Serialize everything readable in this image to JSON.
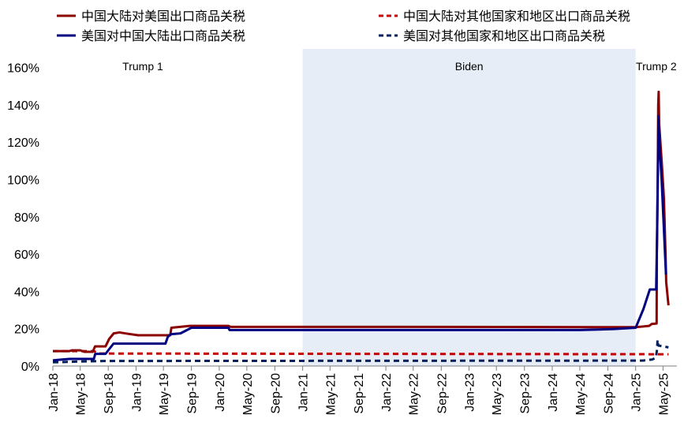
{
  "chart_data": {
    "type": "line",
    "title": "",
    "xlabel": "",
    "ylabel": "",
    "ylim": [
      0,
      170
    ],
    "y_ticks": [
      0,
      20,
      40,
      60,
      80,
      100,
      120,
      140,
      160
    ],
    "y_tick_labels": [
      "0%",
      "20%",
      "40%",
      "60%",
      "80%",
      "100%",
      "120%",
      "140%",
      "160%"
    ],
    "x_range": [
      "2018-01",
      "2025-07"
    ],
    "x_tick_labels": [
      "Jan-18",
      "May-18",
      "Sep-18",
      "Jan-19",
      "May-19",
      "Sep-19",
      "Jan-20",
      "May-20",
      "Sep-20",
      "Jan-21",
      "May-21",
      "Sep-21",
      "Jan-22",
      "May-22",
      "Sep-22",
      "Jan-23",
      "May-23",
      "Sep-23",
      "Jan-24",
      "May-24",
      "Sep-24",
      "Jan-25",
      "May-25"
    ],
    "x_ticks": [
      "2018-01",
      "2018-05",
      "2018-09",
      "2019-01",
      "2019-05",
      "2019-09",
      "2020-01",
      "2020-05",
      "2020-09",
      "2021-01",
      "2021-05",
      "2021-09",
      "2022-01",
      "2022-05",
      "2022-09",
      "2023-01",
      "2023-05",
      "2023-09",
      "2024-01",
      "2024-05",
      "2024-09",
      "2025-01",
      "2025-05"
    ],
    "grid": false,
    "legend_position": "top",
    "periods": [
      {
        "label": "Trump 1",
        "start": "2018-01",
        "end": "2021-01",
        "shaded": false
      },
      {
        "label": "Biden",
        "start": "2021-01",
        "end": "2025-01",
        "shaded": true,
        "color": "#e6edf6"
      },
      {
        "label": "Trump 2",
        "start": "2025-01",
        "end": "2025-07",
        "shaded": false
      }
    ],
    "series": [
      {
        "name": "中国大陆对美国出口商品关税",
        "color": "#8b0000",
        "dash": "solid",
        "points": [
          [
            "2018-01-01",
            8.0
          ],
          [
            "2018-03-15",
            8.0
          ],
          [
            "2018-03-25",
            8.4
          ],
          [
            "2018-05-01",
            8.4
          ],
          [
            "2018-05-20",
            7.6
          ],
          [
            "2018-06-25",
            7.6
          ],
          [
            "2018-07-05",
            10.5
          ],
          [
            "2018-08-20",
            10.5
          ],
          [
            "2018-09-05",
            14.5
          ],
          [
            "2018-09-25",
            17.5
          ],
          [
            "2018-10-20",
            18.0
          ],
          [
            "2018-11-30",
            17.2
          ],
          [
            "2019-01-10",
            16.5
          ],
          [
            "2019-05-31",
            16.5
          ],
          [
            "2019-06-05",
            20.5
          ],
          [
            "2019-08-25",
            21.5
          ],
          [
            "2020-02-10",
            21.5
          ],
          [
            "2020-02-20",
            21.0
          ],
          [
            "2022-01-01",
            21.0
          ],
          [
            "2025-01-01",
            20.8
          ],
          [
            "2025-03-01",
            21.5
          ],
          [
            "2025-03-12",
            22.5
          ],
          [
            "2025-04-03",
            22.8
          ],
          [
            "2025-04-04",
            60.0
          ],
          [
            "2025-04-08",
            100.0
          ],
          [
            "2025-04-10",
            140.0
          ],
          [
            "2025-04-12",
            147.0
          ],
          [
            "2025-04-14",
            130.0
          ],
          [
            "2025-04-25",
            110.0
          ],
          [
            "2025-05-05",
            90.0
          ],
          [
            "2025-05-12",
            60.0
          ],
          [
            "2025-05-15",
            45.0
          ],
          [
            "2025-05-25",
            32.5
          ]
        ]
      },
      {
        "name": "中国大陆对其他国家和地区出口商品关税",
        "color": "#c00000",
        "dash": "dashed",
        "points": [
          [
            "2018-01-01",
            8.0
          ],
          [
            "2018-07-01",
            8.0
          ],
          [
            "2018-07-15",
            6.7
          ],
          [
            "2025-05-25",
            6.3
          ]
        ]
      },
      {
        "name": "美国对中国大陆出口商品关税",
        "color": "#000080",
        "dash": "solid",
        "points": [
          [
            "2018-01-01",
            3.0
          ],
          [
            "2018-02-01",
            3.4
          ],
          [
            "2018-03-15",
            3.8
          ],
          [
            "2018-06-30",
            3.8
          ],
          [
            "2018-07-06",
            6.5
          ],
          [
            "2018-08-20",
            6.5
          ],
          [
            "2018-09-24",
            12.0
          ],
          [
            "2019-05-10",
            12.0
          ],
          [
            "2019-05-20",
            15.5
          ],
          [
            "2019-06-01",
            17.0
          ],
          [
            "2019-07-15",
            17.5
          ],
          [
            "2019-09-01",
            20.5
          ],
          [
            "2020-02-10",
            20.5
          ],
          [
            "2020-02-15",
            19.3
          ],
          [
            "2024-05-01",
            19.3
          ],
          [
            "2024-09-27",
            19.8
          ],
          [
            "2025-01-01",
            20.5
          ],
          [
            "2025-02-04",
            30.5
          ],
          [
            "2025-03-04",
            41.0
          ],
          [
            "2025-04-01",
            41.0
          ],
          [
            "2025-04-05",
            70.0
          ],
          [
            "2025-04-09",
            110.0
          ],
          [
            "2025-04-11",
            134.0
          ],
          [
            "2025-04-15",
            120.0
          ],
          [
            "2025-04-25",
            100.0
          ],
          [
            "2025-05-14",
            49.0
          ]
        ]
      },
      {
        "name": "美国对其他国家和地区出口商品关税",
        "color": "#001f5f",
        "dash": "dashed",
        "points": [
          [
            "2018-01-01",
            2.0
          ],
          [
            "2018-06-01",
            2.5
          ],
          [
            "2018-09-01",
            2.7
          ],
          [
            "2025-02-01",
            2.9
          ],
          [
            "2025-03-15",
            3.5
          ],
          [
            "2025-03-31",
            4.5
          ],
          [
            "2025-04-05",
            9.0
          ],
          [
            "2025-04-07",
            14.0
          ],
          [
            "2025-04-10",
            11.0
          ],
          [
            "2025-05-25",
            10.0
          ]
        ]
      }
    ]
  }
}
